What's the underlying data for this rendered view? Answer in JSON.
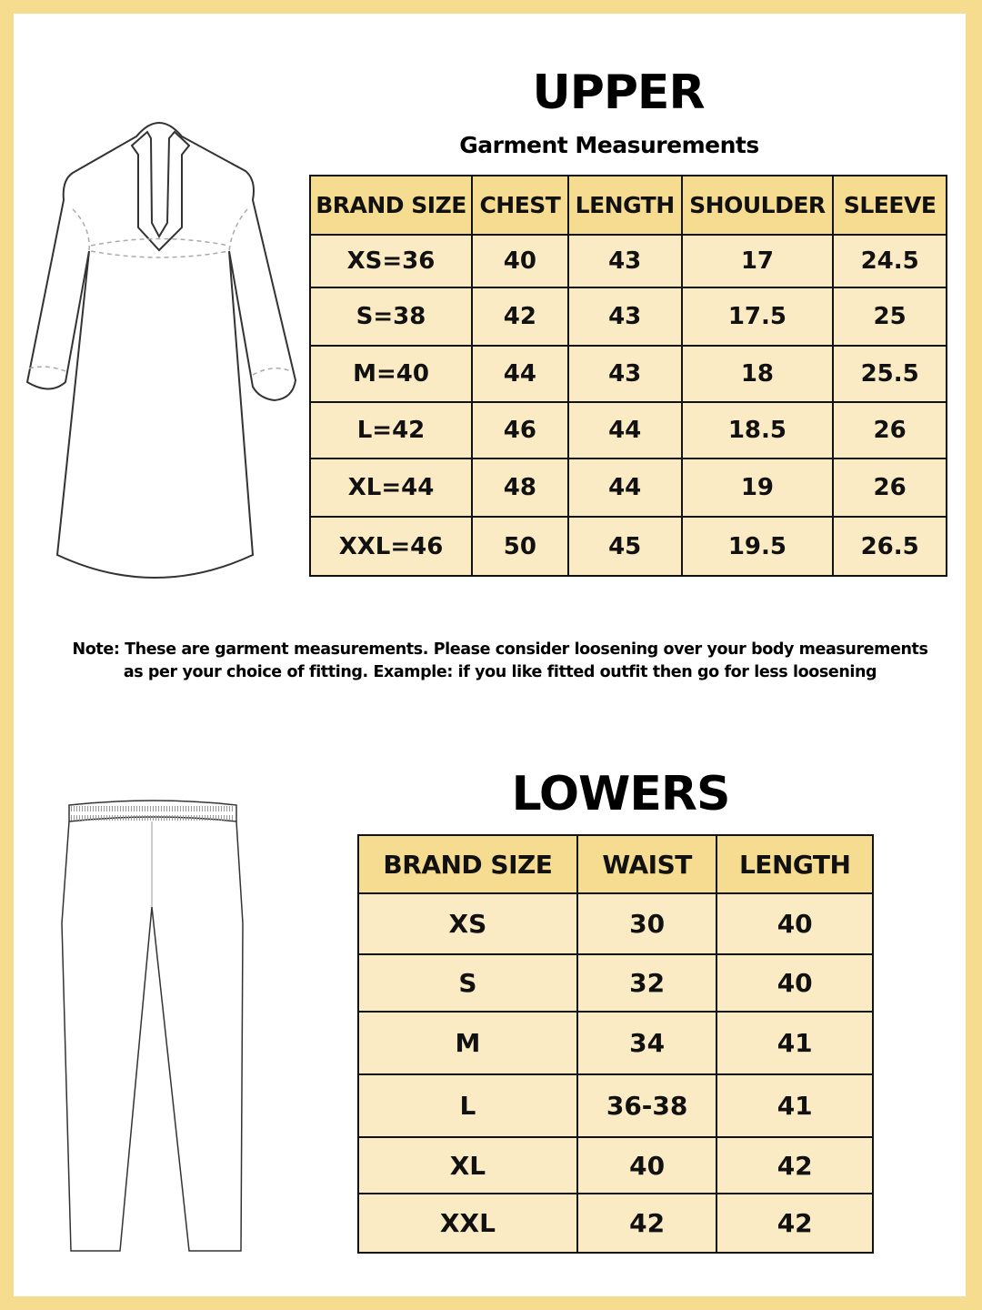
{
  "upper": {
    "title": "UPPER",
    "subtitle": "Garment Measurements",
    "headers": [
      "BRAND SIZE",
      "CHEST",
      "LENGTH",
      "SHOULDER",
      "SLEEVE"
    ],
    "rows": [
      [
        "XS=36",
        "40",
        "43",
        "17",
        "24.5"
      ],
      [
        "S=38",
        "42",
        "43",
        "17.5",
        "25"
      ],
      [
        "M=40",
        "44",
        "43",
        "18",
        "25.5"
      ],
      [
        "L=42",
        "46",
        "44",
        "18.5",
        "26"
      ],
      [
        "XL=44",
        "48",
        "44",
        "19",
        "26"
      ],
      [
        "XXL=46",
        "50",
        "45",
        "19.5",
        "26.5"
      ]
    ]
  },
  "note": {
    "line1": "Note: These are garment measurements. Please consider loosening over your body measurements",
    "line2": "as per your choice of fitting. Example: if you like fitted outfit then go for less loosening"
  },
  "lowers": {
    "title": "LOWERS",
    "headers": [
      "BRAND SIZE",
      "WAIST",
      "LENGTH"
    ],
    "rows": [
      [
        "XS",
        "30",
        "40"
      ],
      [
        "S",
        "32",
        "40"
      ],
      [
        "M",
        "34",
        "41"
      ],
      [
        "L",
        "36-38",
        "41"
      ],
      [
        "XL",
        "40",
        "42"
      ],
      [
        "XXL",
        "42",
        "42"
      ]
    ]
  },
  "colors": {
    "frame": "#F5DC8F",
    "header": "#F5DC90",
    "cell": "#FAEBC5"
  },
  "icons": {
    "upper": "kurta-illustration",
    "lower": "pants-illustration"
  }
}
